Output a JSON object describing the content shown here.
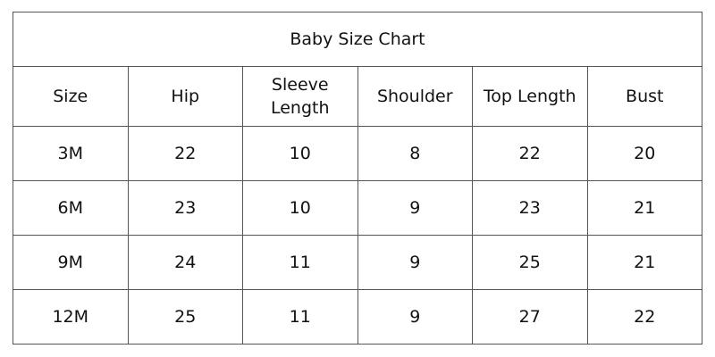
{
  "title": "Baby Size Chart",
  "columns": [
    "Size",
    "Hip",
    "Sleeve Length",
    "Shoulder",
    "Top Length",
    "Bust"
  ],
  "rows": [
    [
      "3M",
      "22",
      "10",
      "8",
      "22",
      "20"
    ],
    [
      "6M",
      "23",
      "10",
      "9",
      "23",
      "21"
    ],
    [
      "9M",
      "24",
      "11",
      "9",
      "25",
      "21"
    ],
    [
      "12M",
      "25",
      "11",
      "9",
      "27",
      "22"
    ]
  ]
}
